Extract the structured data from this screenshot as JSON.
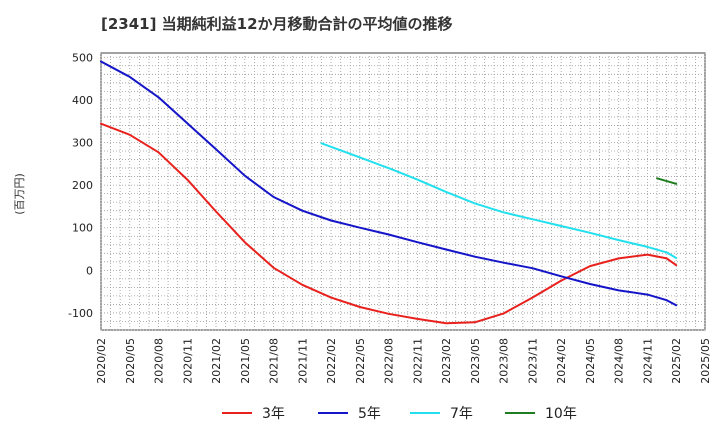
{
  "chart_data": {
    "type": "line",
    "title": "[2341]  当期純利益12か月移動合計の平均値の推移",
    "ylabel": "(百万円)",
    "xlabel": "",
    "ylim": [
      -140,
      510
    ],
    "yticks": [
      500,
      400,
      300,
      200,
      100,
      0,
      -100
    ],
    "xticks": [
      "2020/02",
      "2020/05",
      "2020/08",
      "2020/11",
      "2021/02",
      "2021/05",
      "2021/08",
      "2021/11",
      "2022/02",
      "2022/05",
      "2022/08",
      "2022/11",
      "2023/02",
      "2023/05",
      "2023/08",
      "2023/11",
      "2024/02",
      "2024/05",
      "2024/08",
      "2024/11",
      "2025/02",
      "2025/05"
    ],
    "grid": true,
    "legend_position": "bottom",
    "series": [
      {
        "name": "3年",
        "color": "#e8211d",
        "points": [
          [
            "2020/02",
            344
          ],
          [
            "2020/05",
            318
          ],
          [
            "2020/08",
            277
          ],
          [
            "2020/11",
            213
          ],
          [
            "2021/02",
            138
          ],
          [
            "2021/05",
            66
          ],
          [
            "2021/08",
            6
          ],
          [
            "2021/11",
            -34
          ],
          [
            "2022/02",
            -64
          ],
          [
            "2022/05",
            -86
          ],
          [
            "2022/08",
            -102
          ],
          [
            "2022/11",
            -114
          ],
          [
            "2023/02",
            -124
          ],
          [
            "2023/05",
            -122
          ],
          [
            "2023/08",
            -101
          ],
          [
            "2023/11",
            -64
          ],
          [
            "2024/02",
            -24
          ],
          [
            "2024/05",
            10
          ],
          [
            "2024/08",
            28
          ],
          [
            "2024/11",
            37
          ],
          [
            "2025/01",
            28
          ],
          [
            "2025/02",
            12
          ]
        ]
      },
      {
        "name": "5年",
        "color": "#1414c8",
        "points": [
          [
            "2020/02",
            490
          ],
          [
            "2020/05",
            454
          ],
          [
            "2020/08",
            406
          ],
          [
            "2020/11",
            345
          ],
          [
            "2021/02",
            284
          ],
          [
            "2021/05",
            222
          ],
          [
            "2021/08",
            172
          ],
          [
            "2021/11",
            140
          ],
          [
            "2022/02",
            117
          ],
          [
            "2022/05",
            100
          ],
          [
            "2022/08",
            84
          ],
          [
            "2022/11",
            66
          ],
          [
            "2023/02",
            49
          ],
          [
            "2023/05",
            32
          ],
          [
            "2023/08",
            18
          ],
          [
            "2023/11",
            5
          ],
          [
            "2024/02",
            -14
          ],
          [
            "2024/05",
            -32
          ],
          [
            "2024/08",
            -47
          ],
          [
            "2024/11",
            -57
          ],
          [
            "2025/01",
            -70
          ],
          [
            "2025/02",
            -82
          ]
        ]
      },
      {
        "name": "7年",
        "color": "#22e0ee",
        "points": [
          [
            "2022/01",
            298
          ],
          [
            "2022/05",
            265
          ],
          [
            "2022/08",
            240
          ],
          [
            "2022/11",
            213
          ],
          [
            "2023/02",
            184
          ],
          [
            "2023/05",
            157
          ],
          [
            "2023/08",
            136
          ],
          [
            "2023/11",
            120
          ],
          [
            "2024/02",
            104
          ],
          [
            "2024/05",
            88
          ],
          [
            "2024/08",
            71
          ],
          [
            "2024/11",
            55
          ],
          [
            "2025/01",
            42
          ],
          [
            "2025/02",
            29
          ]
        ]
      },
      {
        "name": "10年",
        "color": "#1e7d1e",
        "points": [
          [
            "2024/12",
            216
          ],
          [
            "2025/02",
            203
          ]
        ]
      }
    ]
  }
}
